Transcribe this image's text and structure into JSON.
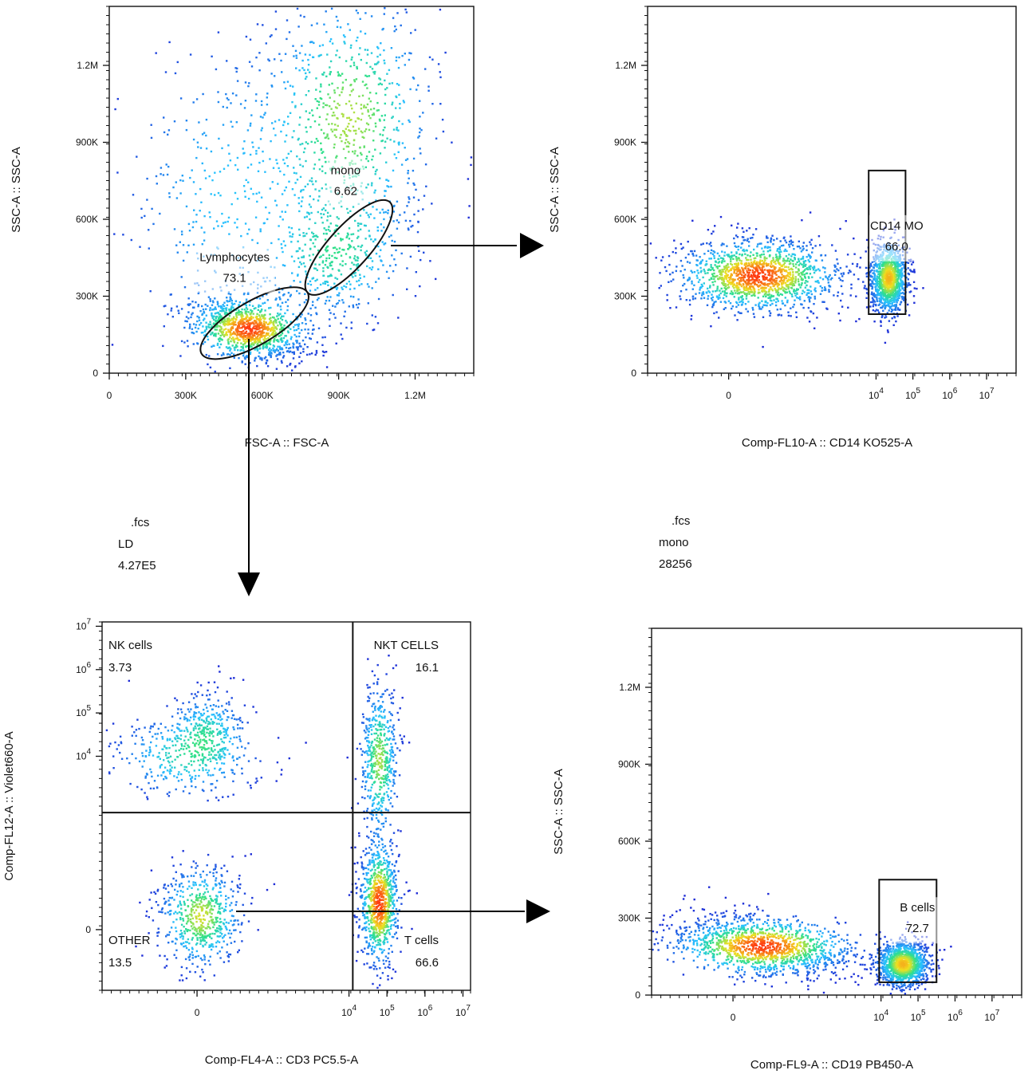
{
  "colors": {
    "axis": "#111111",
    "gate": "#111111",
    "density_low": "#1f2bd6",
    "density_mid": "#28c2ff",
    "density_mid2": "#2fe08a",
    "density_high_a": "#f0e020",
    "density_high_b": "#ff3a12"
  },
  "sample_info": [
    {
      "file": ".fcs",
      "gate": "LD",
      "count": "4.27E5"
    },
    {
      "file": ".fcs",
      "gate": "mono",
      "count": "28256"
    }
  ],
  "chart_data": [
    {
      "id": "fsc-ssc",
      "type": "scatter",
      "xlabel": "FSC-A :: FSC-A",
      "ylabel": "SSC-A :: SSC-A",
      "x_scale": "linear",
      "y_scale": "linear",
      "xlim": [
        0,
        1430000
      ],
      "ylim": [
        0,
        1430000
      ],
      "xticks": [
        {
          "v": 0,
          "label": "0"
        },
        {
          "v": 300000,
          "label": "300K"
        },
        {
          "v": 600000,
          "label": "600K"
        },
        {
          "v": 900000,
          "label": "900K"
        },
        {
          "v": 1200000,
          "label": "1.2M"
        }
      ],
      "yticks": [
        {
          "v": 0,
          "label": "0"
        },
        {
          "v": 300000,
          "label": "300K"
        },
        {
          "v": 600000,
          "label": "600K"
        },
        {
          "v": 900000,
          "label": "900K"
        },
        {
          "v": 1200000,
          "label": "1.2M"
        }
      ],
      "populations": [
        {
          "cx": 550000,
          "cy": 170000,
          "sx": 110000,
          "sy": 55000,
          "weight": 1.0,
          "rot": -0.25
        },
        {
          "cx": 900000,
          "cy": 450000,
          "sx": 150000,
          "sy": 130000,
          "weight": 0.45,
          "rot": 0.2
        },
        {
          "cx": 950000,
          "cy": 1000000,
          "sx": 170000,
          "sy": 260000,
          "weight": 0.7,
          "rot": 0.0
        },
        {
          "cx": 450000,
          "cy": 700000,
          "sx": 220000,
          "sy": 330000,
          "weight": 0.35,
          "rot": 0.0
        }
      ],
      "gates": [
        {
          "shape": "ellipse",
          "name": "Lymphocytes",
          "value": "73.1",
          "cx": 570000,
          "cy": 195000,
          "rx": 240000,
          "ry": 85000,
          "angle": -30
        },
        {
          "shape": "ellipse",
          "name": "mono",
          "value": "6.62",
          "cx": 940000,
          "cy": 490000,
          "rx": 240000,
          "ry": 80000,
          "angle": -48
        }
      ]
    },
    {
      "id": "cd14-ssc",
      "type": "scatter",
      "xlabel": "Comp-FL10-A :: CD14 KO525-A",
      "ylabel": "SSC-A :: SSC-A",
      "x_scale": "biexponential",
      "y_scale": "linear",
      "xlim": [
        -2.2,
        7.8
      ],
      "ylim": [
        0,
        1430000
      ],
      "xticks": [
        {
          "v": 0,
          "label": "0"
        },
        {
          "v": 4,
          "label": "10",
          "exp": "4"
        },
        {
          "v": 5,
          "label": "10",
          "exp": "5"
        },
        {
          "v": 6,
          "label": "10",
          "exp": "6"
        },
        {
          "v": 7,
          "label": "10",
          "exp": "7"
        }
      ],
      "yticks": [
        {
          "v": 0,
          "label": "0"
        },
        {
          "v": 300000,
          "label": "300K"
        },
        {
          "v": 600000,
          "label": "600K"
        },
        {
          "v": 900000,
          "label": "900K"
        },
        {
          "v": 1200000,
          "label": "1.2M"
        }
      ],
      "populations": [
        {
          "cx": 0.8,
          "cy": 380000,
          "sx": 1.1,
          "sy": 70000,
          "weight": 1.0,
          "rot": 0.0
        },
        {
          "cx": 4.35,
          "cy": 370000,
          "sx": 0.25,
          "sy": 70000,
          "weight": 0.8,
          "rot": 0.0
        }
      ],
      "gates": [
        {
          "shape": "rect",
          "name": "CD14 MO",
          "value": "66.0",
          "x0": 3.8,
          "x1": 4.8,
          "y0": 230000,
          "y1": 790000
        }
      ]
    },
    {
      "id": "cd3-violet660",
      "type": "scatter",
      "xlabel": "Comp-FL4-A :: CD3 PC5.5-A",
      "ylabel": "Comp-FL12-A :: Violet660-A",
      "x_scale": "biexponential",
      "y_scale": "biexponential",
      "xlim": [
        -2.5,
        7.2
      ],
      "ylim": [
        -1.4,
        7.1
      ],
      "xticks": [
        {
          "v": 0,
          "label": "0"
        },
        {
          "v": 4,
          "label": "10",
          "exp": "4"
        },
        {
          "v": 5,
          "label": "10",
          "exp": "5"
        },
        {
          "v": 6,
          "label": "10",
          "exp": "6"
        },
        {
          "v": 7,
          "label": "10",
          "exp": "7"
        }
      ],
      "yticks": [
        {
          "v": 0,
          "label": "0"
        },
        {
          "v": 4,
          "label": "10",
          "exp": "4"
        },
        {
          "v": 5,
          "label": "10",
          "exp": "5"
        },
        {
          "v": 6,
          "label": "10",
          "exp": "6"
        },
        {
          "v": 7,
          "label": "10",
          "exp": "7"
        }
      ],
      "populations": [
        {
          "cx": 0.1,
          "cy": 0.3,
          "sx": 0.55,
          "sy": 0.6,
          "weight": 0.7,
          "rot": 0.0
        },
        {
          "cx": -0.3,
          "cy": 4.0,
          "sx": 1.0,
          "sy": 0.5,
          "weight": 0.45,
          "rot": 0.0
        },
        {
          "cx": 0.3,
          "cy": 4.7,
          "sx": 0.5,
          "sy": 0.45,
          "weight": 0.3,
          "rot": 0.0
        },
        {
          "cx": 4.8,
          "cy": 0.6,
          "sx": 0.25,
          "sy": 0.7,
          "weight": 1.0,
          "rot": 0.0
        },
        {
          "cx": 4.8,
          "cy": 3.9,
          "sx": 0.25,
          "sy": 0.9,
          "weight": 0.65,
          "rot": 0.0
        }
      ],
      "quadrant": {
        "x": 4.1,
        "y": 2.7
      },
      "quadrant_labels": [
        {
          "name": "NK cells",
          "value": "3.73",
          "pos": "top-left"
        },
        {
          "name": "NKT CELLS",
          "value": "16.1",
          "pos": "top-right"
        },
        {
          "name": "OTHER",
          "value": "13.5",
          "pos": "bottom-left"
        },
        {
          "name": "T cells",
          "value": "66.6",
          "pos": "bottom-right"
        }
      ]
    },
    {
      "id": "cd19-ssc",
      "type": "scatter",
      "xlabel": "Comp-FL9-A :: CD19 PB450-A",
      "ylabel": "SSC-A :: SSC-A",
      "x_scale": "biexponential",
      "y_scale": "linear",
      "xlim": [
        -2.2,
        7.8
      ],
      "ylim": [
        0,
        1430000
      ],
      "xticks": [
        {
          "v": 0,
          "label": "0"
        },
        {
          "v": 4,
          "label": "10",
          "exp": "4"
        },
        {
          "v": 5,
          "label": "10",
          "exp": "5"
        },
        {
          "v": 6,
          "label": "10",
          "exp": "6"
        },
        {
          "v": 7,
          "label": "10",
          "exp": "7"
        }
      ],
      "yticks": [
        {
          "v": 0,
          "label": "0"
        },
        {
          "v": 300000,
          "label": "300K"
        },
        {
          "v": 600000,
          "label": "600K"
        },
        {
          "v": 900000,
          "label": "900K"
        },
        {
          "v": 1200000,
          "label": "1.2M"
        }
      ],
      "populations": [
        {
          "cx": 0.8,
          "cy": 190000,
          "sx": 1.2,
          "sy": 55000,
          "weight": 1.0,
          "rot": -0.25
        },
        {
          "cx": 4.6,
          "cy": 120000,
          "sx": 0.35,
          "sy": 45000,
          "weight": 0.8,
          "rot": 0.0
        }
      ],
      "gates": [
        {
          "shape": "rect",
          "name": "B cells",
          "value": "72.7",
          "x0": 3.95,
          "x1": 5.5,
          "y0": 50000,
          "y1": 450000
        }
      ]
    }
  ]
}
